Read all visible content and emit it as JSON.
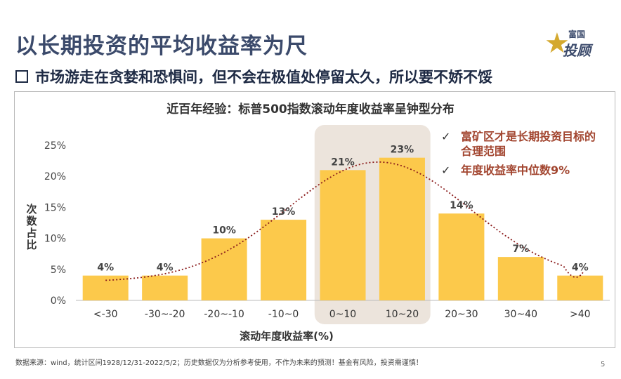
{
  "header": {
    "title": "以长期投资的平均收益率为尺",
    "subtitle": "市场游走在贪婪和恐惧间，但不会在极值处停留太久，所以要不娇不馁"
  },
  "logo": {
    "top_text": "富国",
    "bottom_text": "投顾",
    "star_char": "星",
    "icon": "star-icon",
    "color": "#d4a92f"
  },
  "chart_data": {
    "type": "bar",
    "title": "近百年经验：标普500指数滚动年度收益率呈钟型分布",
    "categories": [
      "<-30",
      "-30~-20",
      "-20~-10",
      "-10~0",
      "0~10",
      "10~20",
      "20~30",
      "30~40",
      ">40"
    ],
    "values": [
      4,
      4,
      10,
      13,
      21,
      23,
      14,
      7,
      4
    ],
    "data_labels": [
      "4%",
      "4%",
      "10%",
      "13%",
      "21%",
      "23%",
      "14%",
      "7%",
      "4%"
    ],
    "xlabel": "滚动年度收益率(%)",
    "ylabel": "次数占比",
    "ylim": [
      0,
      25
    ],
    "yticks": [
      0,
      5,
      10,
      15,
      20,
      25
    ],
    "ytick_labels": [
      "0%",
      "5%",
      "10%",
      "15%",
      "20%",
      "25%"
    ],
    "highlight_categories": [
      "0~10",
      "10~20"
    ],
    "trend_line": "dotted bell curve",
    "grid": false,
    "bar_color": "#fcc94b",
    "highlight_color": "#ece4dc",
    "curve_color": "#8b1c1c"
  },
  "notes": [
    {
      "icon": "check-icon",
      "text": "富矿区才是长期投资目标的合理范围"
    },
    {
      "icon": "check-icon",
      "text": "年度收益率中位数9%"
    }
  ],
  "footer": {
    "source": "数据来源：wind，统计区间1928/12/31-2022/5/2；历史数据仅为分析参考使用，不作为未来的预测！基金有风险，投资需谨慎！",
    "page_number": "5"
  }
}
